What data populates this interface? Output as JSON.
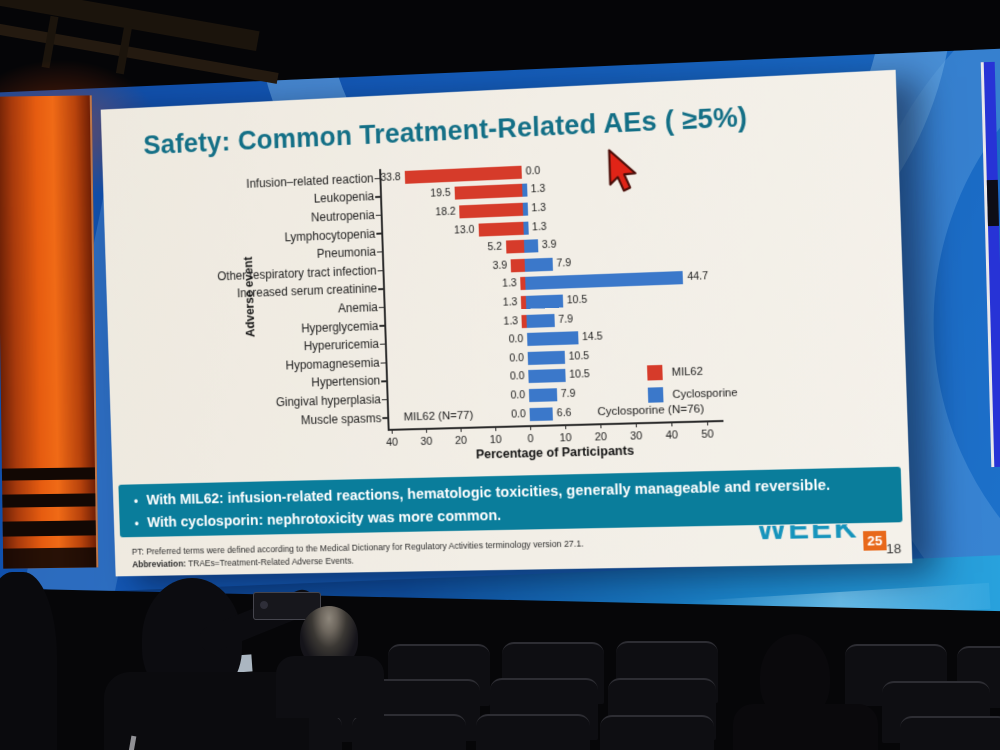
{
  "slide": {
    "title": "Safety: Common Treatment-Related AEs ( ≥5%)",
    "page_number": "18",
    "logo": {
      "word": "WEEK",
      "badge": "25"
    },
    "callout": {
      "bullets": [
        {
          "text": "With MIL62: infusion-related reactions, hematologic toxicities, generally manageable and reversible."
        },
        {
          "text": "With cyclosporin: nephrotoxicity was more common."
        }
      ]
    },
    "footnotes": {
      "line1": "PT: Preferred terms were defined according to the Medical Dictionary for Regulatory Activities terminology version 27.1.",
      "line2_label": "Abbreviation:",
      "line2_text": " TRAEs=Treatment-Related Adverse Events."
    }
  },
  "chart_data": {
    "type": "bar",
    "variant": "butterfly",
    "title": "",
    "ylabel": "Adverse event",
    "xlabel": "Percentage of Participants",
    "axis_tick_labels": [
      "40",
      "30",
      "20",
      "10",
      "0",
      "10",
      "20",
      "30",
      "40",
      "50"
    ],
    "xlim": [
      -40,
      50
    ],
    "categories": [
      "Infusion–related reaction",
      "Leukopenia",
      "Neutropenia",
      "Lymphocytopenia",
      "Pneumonia",
      "Other respiratory tract infection",
      "Increased serum creatinine",
      "Anemia",
      "Hyperglycemia",
      "Hyperuricemia",
      "Hypomagnesemia",
      "Hypertension",
      "Gingival hyperplasia",
      "Muscle spasms"
    ],
    "series": [
      {
        "name": "MIL62",
        "side": "left",
        "color": "#d63b2a",
        "values": [
          33.8,
          19.5,
          18.2,
          13.0,
          5.2,
          3.9,
          1.3,
          1.3,
          1.3,
          0.0,
          0.0,
          0.0,
          0.0,
          0.0
        ]
      },
      {
        "name": "Cyclosporine",
        "side": "right",
        "color": "#3b78ca",
        "values": [
          0.0,
          1.3,
          1.3,
          1.3,
          3.9,
          7.9,
          44.7,
          10.5,
          7.9,
          14.5,
          10.5,
          10.5,
          7.9,
          6.6
        ]
      }
    ],
    "annotations": {
      "left": "MIL62 (N=77)",
      "right": "Cyclosporine (N=76)"
    },
    "legend": [
      {
        "label": "MIL62",
        "color": "#d63b2a"
      },
      {
        "label": "Cyclosporine",
        "color": "#3b78ca"
      }
    ]
  },
  "colors": {
    "title_teal": "#136f86",
    "callout_bg": "#0a7d9b",
    "slide_bg": "#f2eee6",
    "wall_blue": "#1560ba",
    "banner_orange": "#e65c10",
    "logo_teal": "#1694bc",
    "logo_badge_orange": "#e8681a",
    "cursor_red": "#e02417"
  }
}
